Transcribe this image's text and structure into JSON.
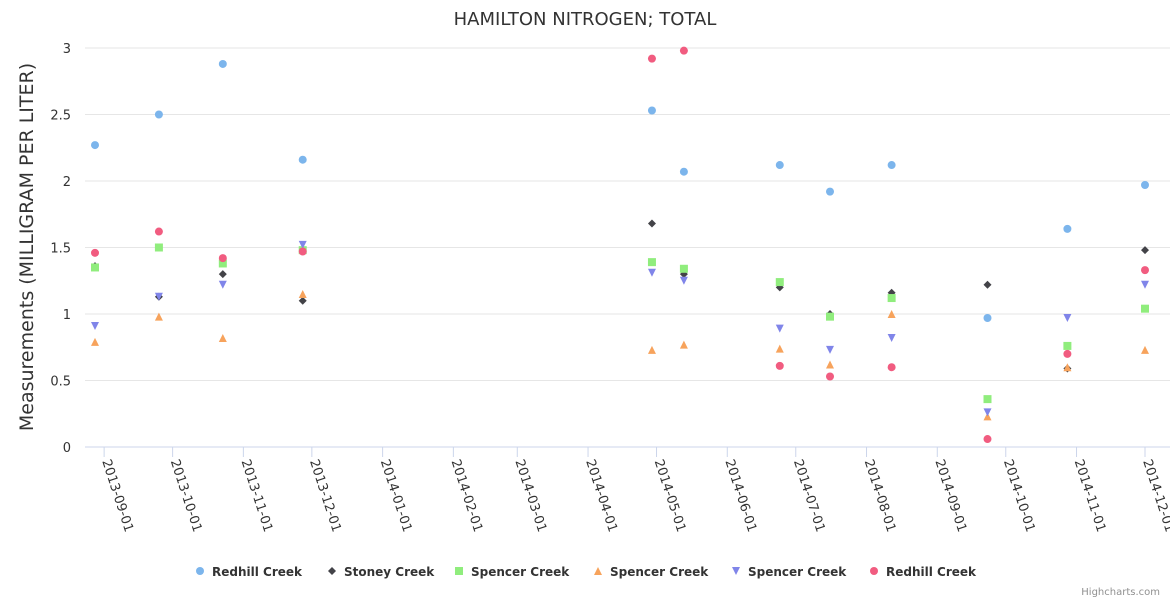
{
  "chart_data": {
    "type": "scatter",
    "title": "HAMILTON NITROGEN; TOTAL",
    "xlabel": "",
    "ylabel": "Measurements (MILLIGRAM PER LITER)",
    "ylim": [
      0,
      3
    ],
    "yticks": [
      "0",
      "0.5",
      "1",
      "1.5",
      "2",
      "2.5",
      "3"
    ],
    "xlim": [
      "2013-08-28",
      "2014-12-01"
    ],
    "xticks": [
      "2013-09-01",
      "2013-10-01",
      "2013-11-01",
      "2013-12-01",
      "2014-01-01",
      "2014-02-01",
      "2014-03-01",
      "2014-04-01",
      "2014-05-01",
      "2014-06-01",
      "2014-07-01",
      "2014-08-01",
      "2014-09-01",
      "2014-10-01",
      "2014-11-01",
      "2014-12-01"
    ],
    "x": [
      "2013-08-28",
      "2013-09-25",
      "2013-10-23",
      "2013-11-27",
      "2014-04-29",
      "2014-05-13",
      "2014-06-24",
      "2014-07-16",
      "2014-08-12",
      "2014-09-23",
      "2014-10-28",
      "2014-12-01"
    ],
    "series": [
      {
        "name": "Redhill Creek",
        "color": "#7cb5ec",
        "marker": "circle",
        "values": [
          2.27,
          2.5,
          2.88,
          2.16,
          2.53,
          2.07,
          2.12,
          1.92,
          2.12,
          0.97,
          1.64,
          1.97
        ]
      },
      {
        "name": "Stoney Creek",
        "color": "#434348",
        "marker": "diamond",
        "values": [
          1.36,
          1.13,
          1.3,
          1.1,
          1.68,
          1.3,
          1.2,
          1.0,
          1.16,
          1.22,
          0.59,
          1.48
        ]
      },
      {
        "name": "Spencer Creek",
        "color": "#90ed7d",
        "marker": "square",
        "values": [
          1.35,
          1.5,
          1.38,
          1.48,
          1.39,
          1.34,
          1.24,
          0.98,
          1.12,
          0.36,
          0.76,
          1.04
        ]
      },
      {
        "name": "Spencer Creek",
        "color": "#f7a35c",
        "marker": "triangle",
        "values": [
          0.79,
          0.98,
          0.82,
          1.15,
          0.73,
          0.77,
          0.74,
          0.62,
          1.0,
          0.23,
          0.6,
          0.73
        ]
      },
      {
        "name": "Spencer Creek",
        "color": "#8085e9",
        "marker": "triangle-down",
        "values": [
          0.91,
          1.13,
          1.22,
          1.52,
          1.31,
          1.25,
          0.89,
          0.73,
          0.82,
          0.26,
          0.97,
          1.22
        ]
      },
      {
        "name": "Redhill Creek",
        "color": "#f15c80",
        "marker": "circle",
        "values": [
          1.46,
          1.62,
          1.42,
          1.47,
          2.92,
          2.98,
          0.61,
          0.53,
          0.6,
          0.06,
          0.7,
          1.33
        ]
      }
    ],
    "grid": true,
    "legend": "bottom-center"
  },
  "credits": "Highcharts.com"
}
